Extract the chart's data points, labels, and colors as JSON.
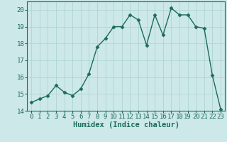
{
  "x": [
    0,
    1,
    2,
    3,
    4,
    5,
    6,
    7,
    8,
    9,
    10,
    11,
    12,
    13,
    14,
    15,
    16,
    17,
    18,
    19,
    20,
    21,
    22,
    23
  ],
  "y": [
    14.5,
    14.7,
    14.9,
    15.5,
    15.1,
    14.9,
    15.3,
    16.2,
    17.8,
    18.3,
    19.0,
    19.0,
    19.7,
    19.4,
    17.9,
    19.7,
    18.5,
    20.1,
    19.7,
    19.7,
    19.0,
    18.9,
    16.1,
    14.1
  ],
  "line_color": "#1a6b5a",
  "marker": "D",
  "marker_size": 2.5,
  "bg_color": "#cde8e8",
  "grid_color": "#b0d8d8",
  "xlabel": "Humidex (Indice chaleur)",
  "ylim": [
    14,
    20.5
  ],
  "xlim": [
    -0.5,
    23.5
  ],
  "yticks": [
    14,
    15,
    16,
    17,
    18,
    19,
    20
  ],
  "xticks": [
    0,
    1,
    2,
    3,
    4,
    5,
    6,
    7,
    8,
    9,
    10,
    11,
    12,
    13,
    14,
    15,
    16,
    17,
    18,
    19,
    20,
    21,
    22,
    23
  ],
  "xlabel_fontsize": 7.5,
  "tick_fontsize": 6.5,
  "line_width": 1.0,
  "spine_color": "#1a6b5a"
}
